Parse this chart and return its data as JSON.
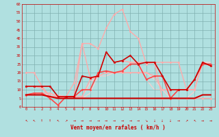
{
  "bg_color": "#b0e0e0",
  "grid_color": "#80b0b0",
  "xlabel": "Vent moyen/en rafales ( km/h )",
  "xlim": [
    -0.5,
    23.5
  ],
  "ylim": [
    0,
    60
  ],
  "yticks": [
    0,
    5,
    10,
    15,
    20,
    25,
    30,
    35,
    40,
    45,
    50,
    55,
    60
  ],
  "xticks": [
    0,
    1,
    2,
    3,
    4,
    5,
    6,
    7,
    8,
    9,
    10,
    11,
    12,
    13,
    14,
    15,
    16,
    17,
    18,
    19,
    20,
    21,
    22,
    23
  ],
  "series": [
    {
      "x": [
        0,
        1,
        2,
        3,
        4,
        5,
        6,
        7,
        8,
        9,
        10,
        11,
        12,
        13,
        14,
        15,
        16,
        17,
        18,
        19,
        20,
        21,
        22,
        23
      ],
      "y": [
        12,
        12,
        11,
        6,
        6,
        6,
        6,
        37,
        37,
        34,
        46,
        54,
        57,
        44,
        40,
        25,
        26,
        26,
        26,
        26,
        10,
        10,
        26,
        24
      ],
      "color": "#ffaaaa",
      "lw": 1.0,
      "marker": "D",
      "ms": 1.5,
      "zorder": 2
    },
    {
      "x": [
        0,
        1,
        2,
        3,
        4,
        5,
        6,
        7,
        8,
        9,
        10,
        11,
        12,
        13,
        14,
        15,
        16,
        17,
        18,
        19,
        20,
        21,
        22,
        23
      ],
      "y": [
        20,
        20,
        12,
        6,
        6,
        6,
        14,
        37,
        17,
        18,
        20,
        20,
        20,
        20,
        20,
        20,
        18,
        10,
        10,
        10,
        10,
        10,
        26,
        24
      ],
      "color": "#ffaaaa",
      "lw": 1.0,
      "marker": "D",
      "ms": 1.5,
      "zorder": 2
    },
    {
      "x": [
        0,
        1,
        2,
        3,
        4,
        5,
        6,
        7,
        8,
        9,
        10,
        11,
        12,
        13,
        14,
        15,
        16,
        17,
        18,
        19,
        20,
        21,
        22,
        23
      ],
      "y": [
        7,
        8,
        8,
        8,
        6,
        6,
        6,
        6,
        16,
        18,
        32,
        26,
        27,
        26,
        26,
        26,
        26,
        5,
        5,
        5,
        5,
        5,
        5,
        5
      ],
      "color": "#ffaaaa",
      "lw": 1.0,
      "marker": "D",
      "ms": 1.5,
      "zorder": 2
    },
    {
      "x": [
        0,
        1,
        2,
        3,
        4,
        5,
        6,
        7,
        8,
        9,
        10,
        11,
        12,
        13,
        14,
        15,
        16,
        17,
        18,
        19,
        20,
        21,
        22,
        23
      ],
      "y": [
        7,
        7,
        7,
        6,
        6,
        5,
        5,
        5,
        8,
        18,
        20,
        20,
        20,
        20,
        20,
        20,
        16,
        10,
        10,
        10,
        10,
        10,
        26,
        26
      ],
      "color": "#ffcccc",
      "lw": 0.8,
      "marker": null,
      "ms": 0,
      "zorder": 1
    },
    {
      "x": [
        0,
        1,
        2,
        3,
        4,
        5,
        6,
        7,
        8,
        9,
        10,
        11,
        12,
        13,
        14,
        15,
        16,
        17,
        18,
        19,
        20,
        21,
        22,
        23
      ],
      "y": [
        7,
        7,
        7,
        7,
        7,
        6,
        6,
        6,
        14,
        18,
        18,
        20,
        20,
        26,
        26,
        16,
        10,
        10,
        5,
        5,
        5,
        9,
        26,
        26
      ],
      "color": "#ffcccc",
      "lw": 0.8,
      "marker": null,
      "ms": 0,
      "zorder": 1
    },
    {
      "x": [
        0,
        1,
        2,
        3,
        4,
        5,
        6,
        7,
        8,
        9,
        10,
        11,
        12,
        13,
        14,
        15,
        16,
        17,
        18,
        19,
        20,
        21,
        22,
        23
      ],
      "y": [
        7,
        8,
        8,
        5,
        1,
        6,
        6,
        10,
        10,
        20,
        21,
        20,
        21,
        25,
        25,
        16,
        18,
        18,
        5,
        10,
        10,
        16,
        25,
        25
      ],
      "color": "#ff4444",
      "lw": 1.2,
      "marker": "D",
      "ms": 1.5,
      "zorder": 3
    },
    {
      "x": [
        0,
        1,
        2,
        3,
        4,
        5,
        6,
        7,
        8,
        9,
        10,
        11,
        12,
        13,
        14,
        15,
        16,
        17,
        18,
        19,
        20,
        21,
        22,
        23
      ],
      "y": [
        12,
        12,
        12,
        12,
        6,
        6,
        6,
        18,
        17,
        18,
        32,
        26,
        27,
        30,
        25,
        26,
        26,
        18,
        10,
        10,
        10,
        16,
        26,
        24
      ],
      "color": "#cc0000",
      "lw": 1.2,
      "marker": "*",
      "ms": 2.5,
      "zorder": 4
    },
    {
      "x": [
        0,
        1,
        2,
        3,
        4,
        5,
        6,
        7,
        8,
        9,
        10,
        11,
        12,
        13,
        14,
        15,
        16,
        17,
        18,
        19,
        20,
        21,
        22,
        23
      ],
      "y": [
        7,
        7,
        7,
        6,
        5,
        5,
        5,
        5,
        5,
        5,
        5,
        5,
        5,
        5,
        5,
        5,
        5,
        5,
        5,
        5,
        5,
        5,
        7,
        7
      ],
      "color": "#cc0000",
      "lw": 1.5,
      "marker": null,
      "ms": 0,
      "zorder": 3
    }
  ],
  "wind_dirs": [
    "NW",
    "NW",
    "N",
    "N",
    "NW",
    "NE",
    "E",
    "E",
    "E",
    "E",
    "E",
    "E",
    "E",
    "E",
    "E",
    "SE",
    "S",
    "S",
    "S",
    "E",
    "NE",
    "NW",
    "E",
    "E"
  ],
  "arrow_chars": {
    "N": "↑",
    "NE": "↗",
    "E": "→",
    "SE": "↘",
    "S": "↓",
    "SW": "↙",
    "W": "←",
    "NW": "↖"
  }
}
